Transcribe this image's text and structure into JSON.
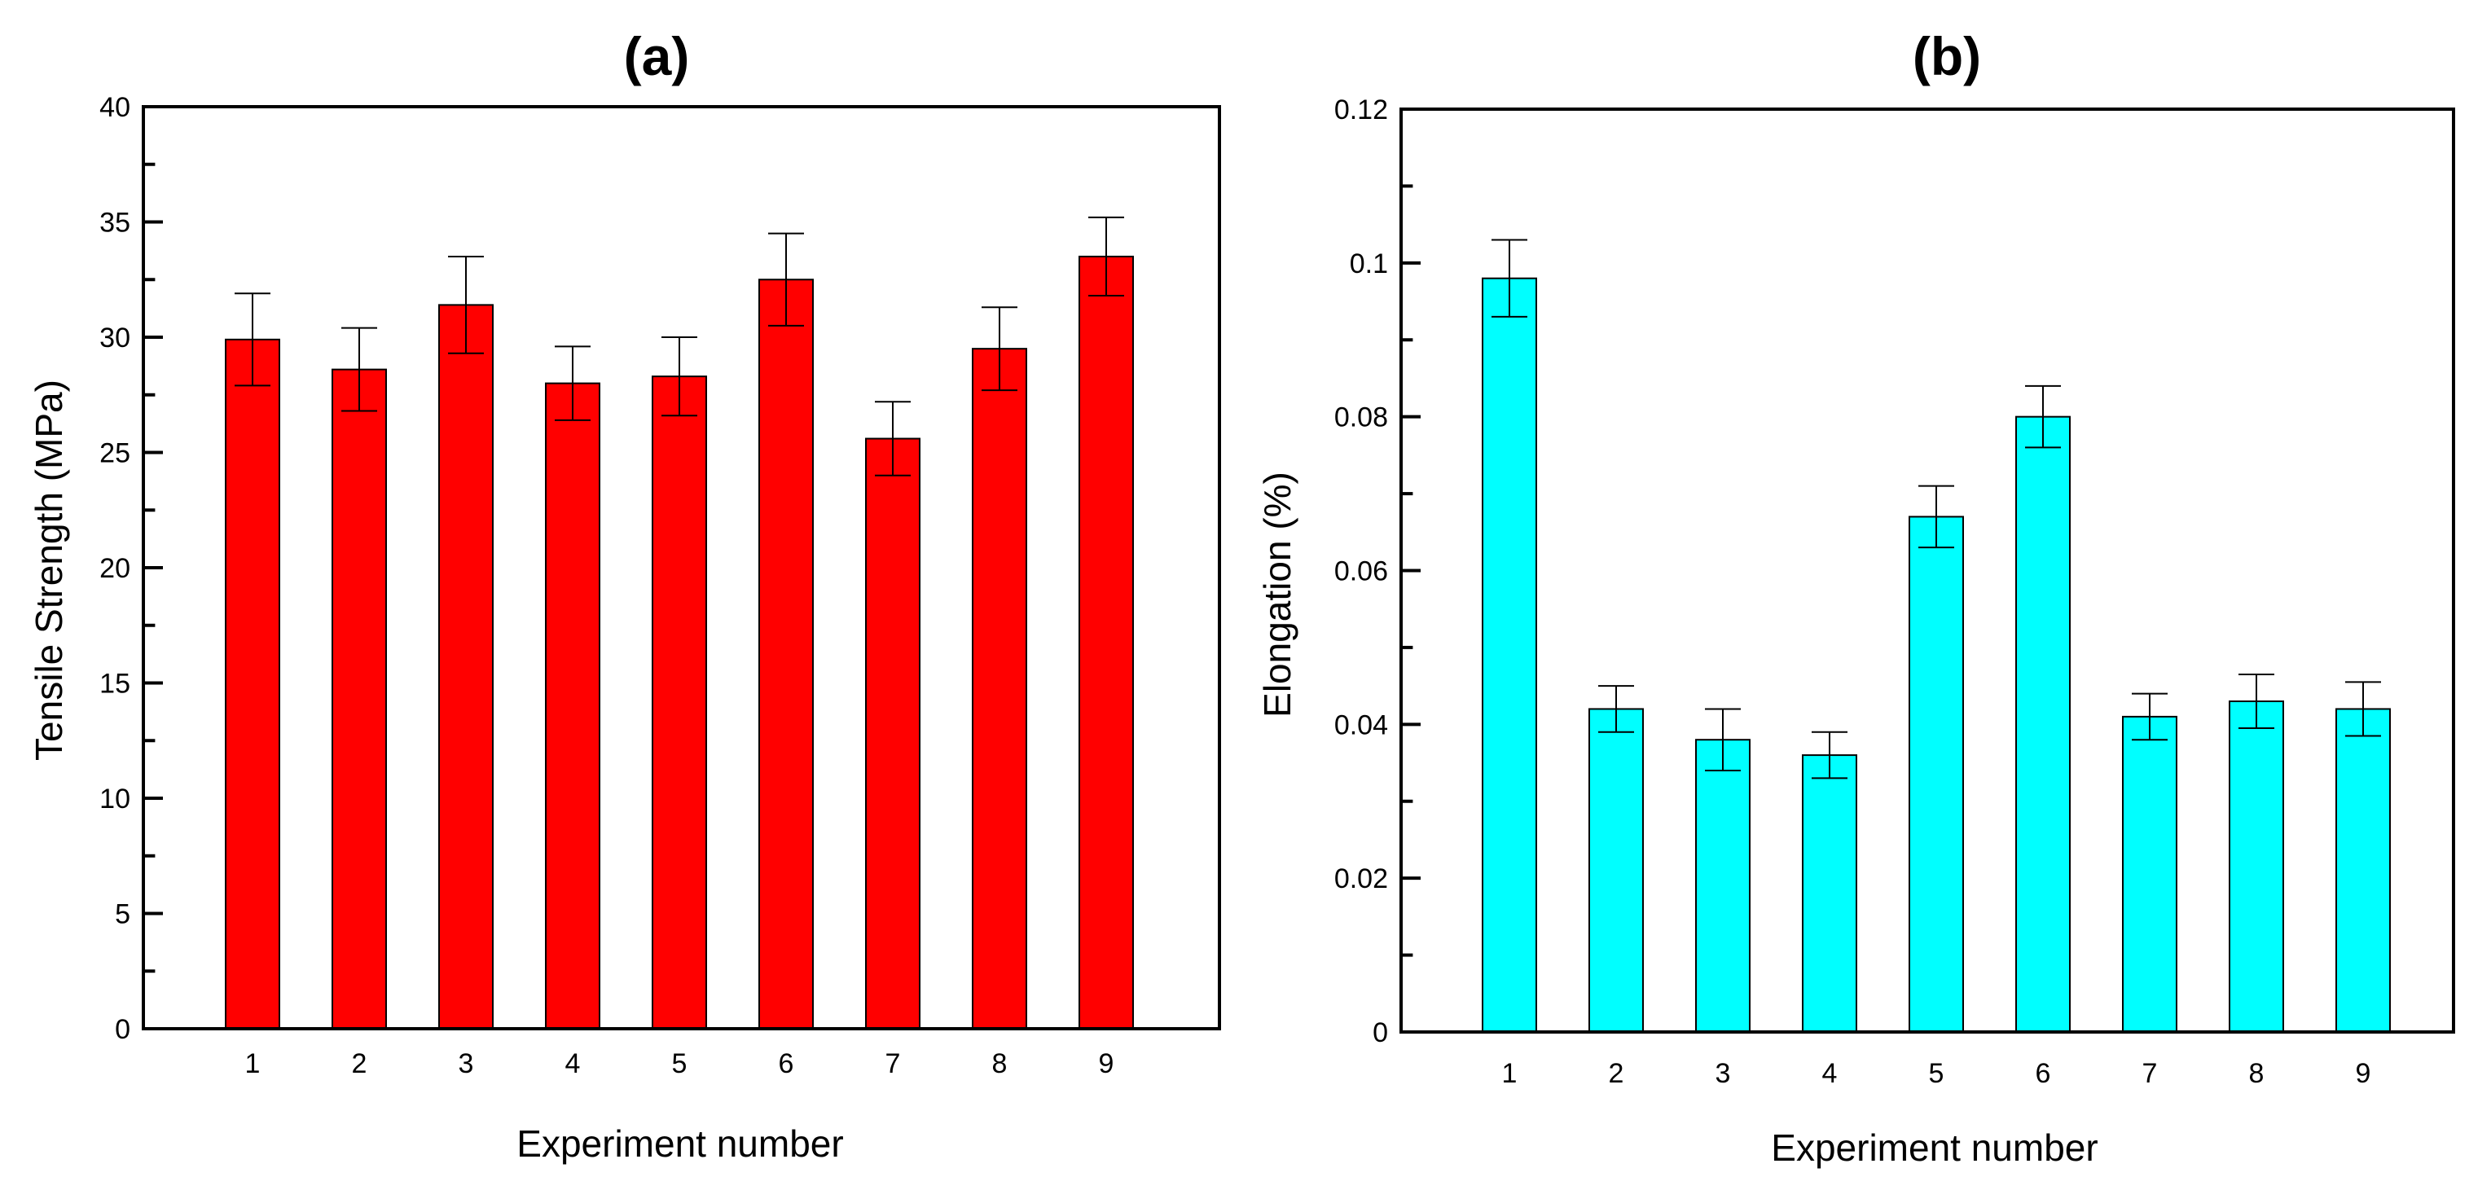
{
  "chart_data": [
    {
      "type": "bar",
      "title": "(a)",
      "xlabel": "Experiment number",
      "ylabel": "Tensile Strength (MPa)",
      "categories": [
        "1",
        "2",
        "3",
        "4",
        "5",
        "6",
        "7",
        "8",
        "9"
      ],
      "values": [
        29.9,
        28.6,
        31.4,
        28.0,
        28.3,
        32.5,
        25.6,
        29.5,
        33.5
      ],
      "errors": [
        2.0,
        1.8,
        2.1,
        1.6,
        1.7,
        2.0,
        1.6,
        1.8,
        1.7
      ],
      "ylim": [
        0,
        40
      ],
      "yticks": [
        0,
        5,
        10,
        15,
        20,
        25,
        30,
        35,
        40
      ],
      "ytick_labels": [
        "0",
        "5",
        "10",
        "15",
        "20",
        "25",
        "30",
        "35",
        "40"
      ],
      "color": "#ff0000",
      "grid": false
    },
    {
      "type": "bar",
      "title": "(b)",
      "xlabel": "Experiment number",
      "ylabel": "Elongation (%)",
      "categories": [
        "1",
        "2",
        "3",
        "4",
        "5",
        "6",
        "7",
        "8",
        "9"
      ],
      "values": [
        0.098,
        0.042,
        0.038,
        0.036,
        0.067,
        0.08,
        0.041,
        0.043,
        0.042
      ],
      "errors": [
        0.005,
        0.003,
        0.004,
        0.003,
        0.004,
        0.004,
        0.003,
        0.0035,
        0.0035
      ],
      "ylim": [
        0,
        0.12
      ],
      "yticks": [
        0,
        0.02,
        0.04,
        0.06,
        0.08,
        0.1,
        0.12
      ],
      "ytick_labels": [
        "0",
        "0.02",
        "0.04",
        "0.06",
        "0.08",
        "0.1",
        "0.12"
      ],
      "color": "#00ffff",
      "grid": false
    }
  ]
}
